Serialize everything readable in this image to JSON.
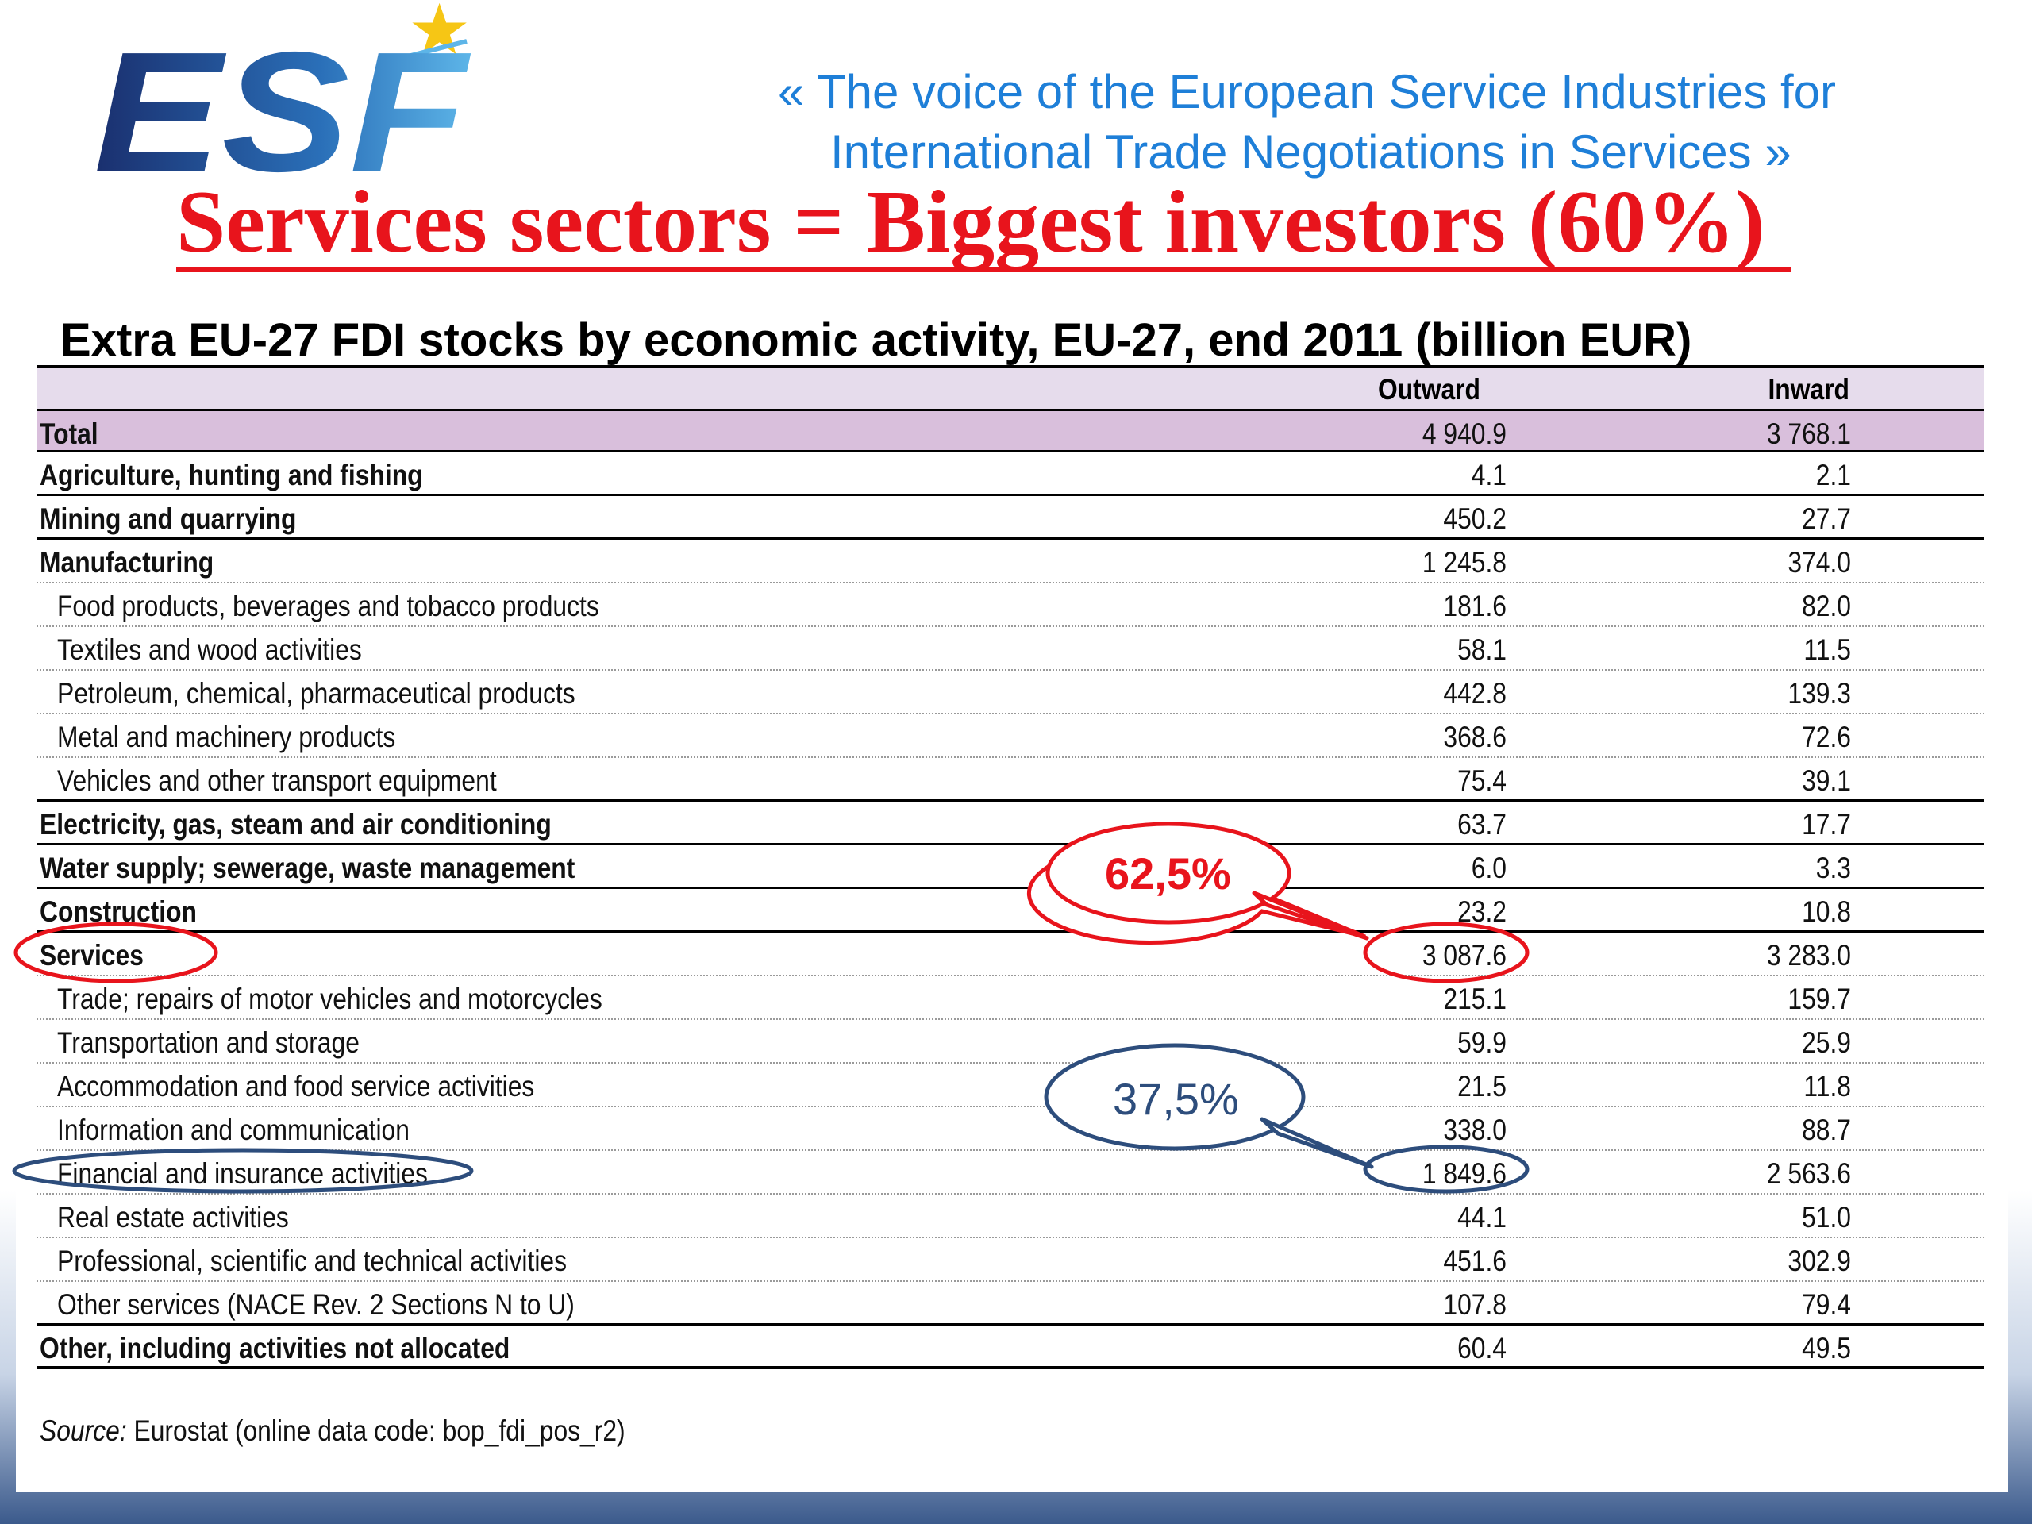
{
  "brand": {
    "logo_text": "ESF"
  },
  "tagline": {
    "line1": "« The voice of the European Service Industries for",
    "line2": "International Trade Negotiations in Services »"
  },
  "headline": "Services sectors = Biggest investors (60%)",
  "table": {
    "title": "Extra EU-27 FDI stocks by economic activity, EU-27, end 2011 (billion EUR)",
    "columns": [
      "Outward",
      "Inward"
    ],
    "rows": [
      {
        "label": "Total",
        "outward": "4 940.9",
        "inward": "3 768.1"
      },
      {
        "label": "Agriculture, hunting and fishing",
        "outward": "4.1",
        "inward": "2.1"
      },
      {
        "label": "Mining and quarrying",
        "outward": "450.2",
        "inward": "27.7"
      },
      {
        "label": "Manufacturing",
        "outward": "1 245.8",
        "inward": "374.0"
      },
      {
        "label": "Food products, beverages and tobacco products",
        "outward": "181.6",
        "inward": "82.0"
      },
      {
        "label": "Textiles and wood activities",
        "outward": "58.1",
        "inward": "11.5"
      },
      {
        "label": "Petroleum, chemical, pharmaceutical products",
        "outward": "442.8",
        "inward": "139.3"
      },
      {
        "label": "Metal and machinery products",
        "outward": "368.6",
        "inward": "72.6"
      },
      {
        "label": "Vehicles and other transport equipment",
        "outward": "75.4",
        "inward": "39.1"
      },
      {
        "label": "Electricity, gas, steam and air conditioning",
        "outward": "63.7",
        "inward": "17.7"
      },
      {
        "label": "Water supply; sewerage, waste management",
        "outward": "6.0",
        "inward": "3.3"
      },
      {
        "label": "Construction",
        "outward": "23.2",
        "inward": "10.8"
      },
      {
        "label": "Services",
        "outward": "3 087.6",
        "inward": "3 283.0"
      },
      {
        "label": "Trade; repairs of motor vehicles and motorcycles",
        "outward": "215.1",
        "inward": "159.7"
      },
      {
        "label": "Transportation and storage",
        "outward": "59.9",
        "inward": "25.9"
      },
      {
        "label": "Accommodation and food service activities",
        "outward": "21.5",
        "inward": "11.8"
      },
      {
        "label": "Information and communication",
        "outward": "338.0",
        "inward": "88.7"
      },
      {
        "label": "Financial and insurance activities",
        "outward": "1 849.6",
        "inward": "2 563.6"
      },
      {
        "label": "Real estate activities",
        "outward": "44.1",
        "inward": "51.0"
      },
      {
        "label": "Professional, scientific and technical activities",
        "outward": "451.6",
        "inward": "302.9"
      },
      {
        "label": "Other services (NACE Rev. 2 Sections N to U)",
        "outward": "107.8",
        "inward": "79.4"
      },
      {
        "label": "Other, including activities not allocated",
        "outward": "60.4",
        "inward": "49.5"
      }
    ]
  },
  "source": {
    "label": "Source:",
    "text": " Eurostat (online data code: bop_fdi_pos_r2)"
  },
  "callouts": {
    "services_share": "62,5%",
    "financial_share": "37,5%"
  },
  "colors": {
    "headline_red": "#e8141c",
    "tagline_blue": "#1e7fd8",
    "callout_blue": "#2d4d7c",
    "total_row": "#d9bfdc"
  }
}
